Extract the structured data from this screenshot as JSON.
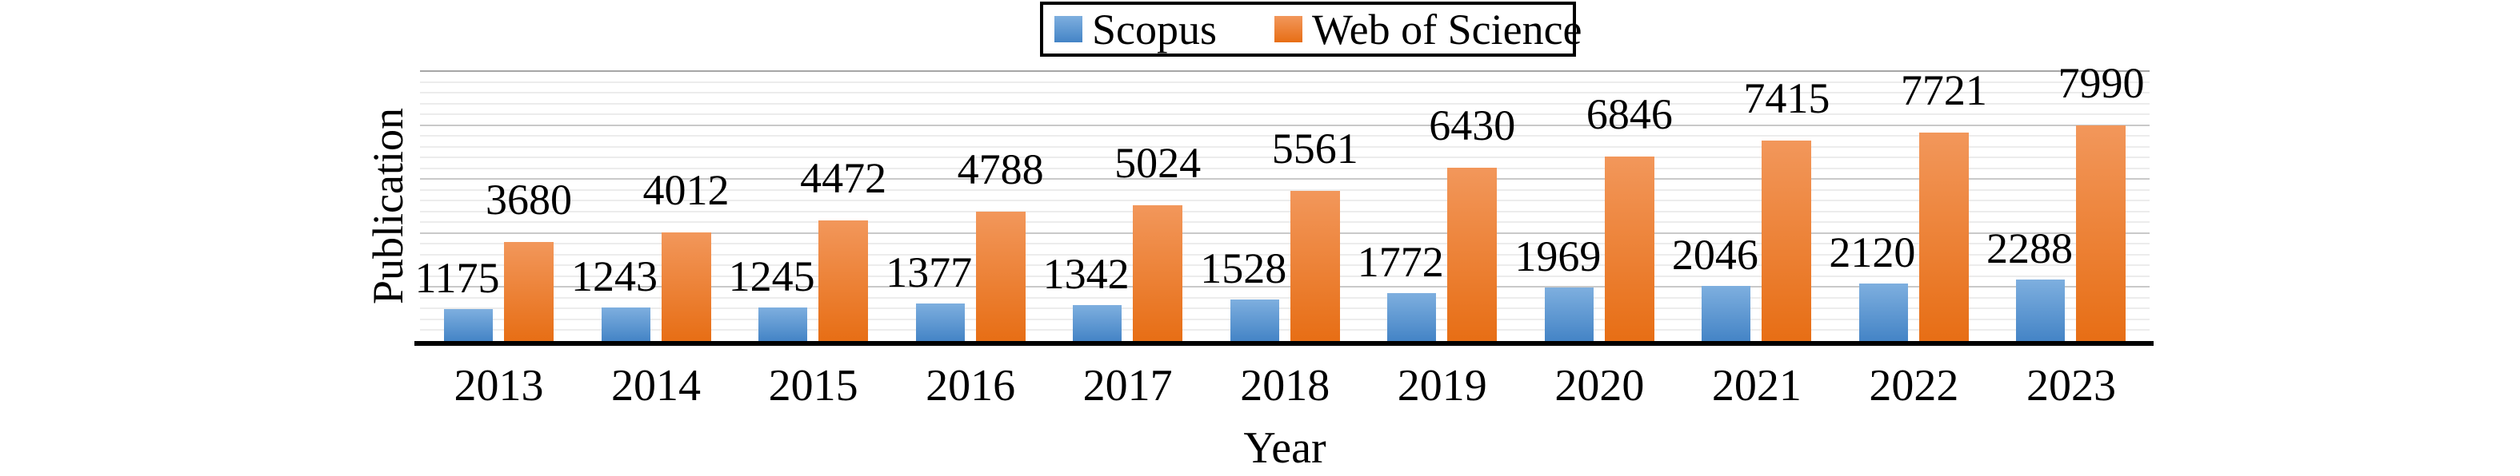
{
  "chart_data": {
    "type": "bar",
    "title": "",
    "xlabel": "Year",
    "ylabel": "Publication",
    "categories": [
      "2013",
      "2014",
      "2015",
      "2016",
      "2017",
      "2018",
      "2019",
      "2020",
      "2021",
      "2022",
      "2023"
    ],
    "series": [
      {
        "name": "Scopus",
        "color": "#5B9BD5",
        "color_top": "#7EAFDF",
        "color_bottom": "#4484C6",
        "values": [
          1175,
          1243,
          1245,
          1377,
          1342,
          1528,
          1772,
          1969,
          2046,
          2120,
          2288
        ]
      },
      {
        "name": "Web of Science",
        "color": "#ED7D31",
        "color_top": "#F2975B",
        "color_bottom": "#E76E15",
        "values": [
          3680,
          4012,
          4472,
          4788,
          5024,
          5561,
          6430,
          6846,
          7415,
          7721,
          7990
        ]
      }
    ],
    "ylim": [
      0,
      10000
    ],
    "grid": {
      "minor_step": 400,
      "major_step": 2000,
      "minor_color": "#ECECEC",
      "major_color": "#C9C9C9",
      "top_color": "#A6A6A6"
    },
    "legend_position": "top-center",
    "value_labels": "above-bars",
    "axis_line_color": "#000000"
  }
}
